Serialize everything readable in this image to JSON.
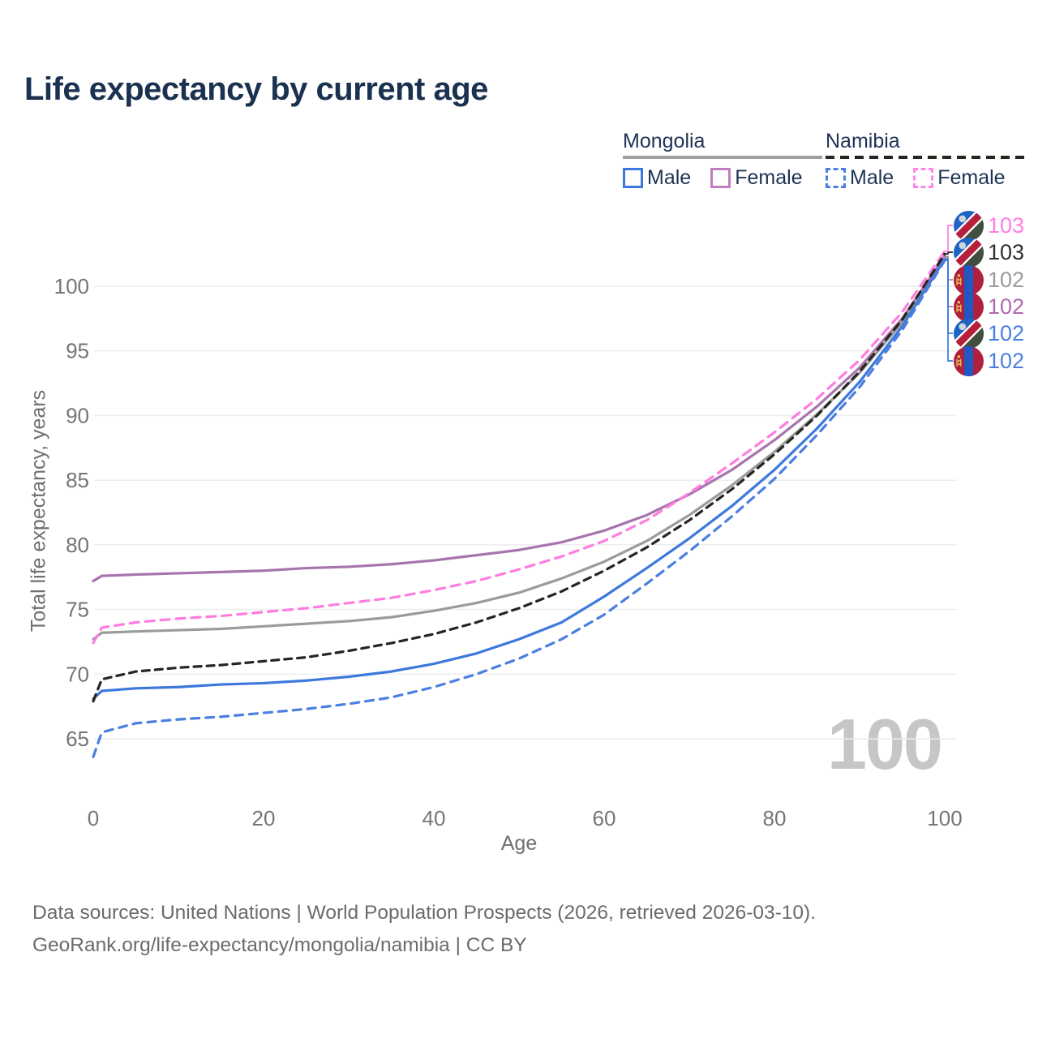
{
  "title": "Life expectancy by current age",
  "watermark": "100",
  "legend": {
    "groups": [
      {
        "name": "Mongolia",
        "line_style": "solid",
        "line_color": "#9f9f9f",
        "items": [
          {
            "label": "Male",
            "color": "#3d78dd",
            "swatch_style": "solid"
          },
          {
            "label": "Female",
            "color": "#bd80bd",
            "swatch_style": "solid"
          }
        ]
      },
      {
        "name": "Namibia",
        "line_style": "dashed",
        "line_color": "#26261f",
        "items": [
          {
            "label": "Male",
            "color": "#4a7fe0",
            "swatch_style": "dashed"
          },
          {
            "label": "Female",
            "color": "#ff85e7",
            "swatch_style": "dashed"
          }
        ]
      }
    ]
  },
  "end_labels": [
    {
      "country": "Namibia",
      "value": "103",
      "color": "#ff7ce6"
    },
    {
      "country": "Namibia",
      "value": "103",
      "color": "#2f2f2f"
    },
    {
      "country": "Mongolia",
      "value": "102",
      "color": "#9b9b9b"
    },
    {
      "country": "Mongolia",
      "value": "102",
      "color": "#b069b0"
    },
    {
      "country": "Namibia",
      "value": "102",
      "color": "#4a7fe0"
    },
    {
      "country": "Mongolia",
      "value": "102",
      "color": "#4a7fe0"
    }
  ],
  "footer": {
    "line1": "Data sources: United Nations | World Population Prospects (2026, retrieved 2026-03-10).",
    "line2": "GeoRank.org/life-expectancy/mongolia/namibia | CC BY"
  },
  "chart_data": {
    "type": "line",
    "title": "Life expectancy by current age",
    "xlabel": "Age",
    "ylabel": "Total life expectancy, years",
    "x_ticks": [
      0,
      20,
      40,
      60,
      80,
      100
    ],
    "y_ticks": [
      65,
      70,
      75,
      80,
      85,
      90,
      95,
      100
    ],
    "xlim": [
      0,
      100
    ],
    "ylim": [
      63,
      104
    ],
    "grid": true,
    "legend_position": "top-right",
    "grid_color": "#ececec",
    "tick_color": "#757575",
    "x": [
      0,
      1,
      5,
      10,
      15,
      20,
      25,
      30,
      35,
      40,
      45,
      50,
      55,
      60,
      65,
      70,
      75,
      80,
      85,
      90,
      95,
      100
    ],
    "series": [
      {
        "name": "Namibia Female",
        "country": "Namibia",
        "sex": "Female",
        "style": "dashed",
        "color": "#ff7ce0",
        "dash": "11 8",
        "width": 3.2,
        "end_value": 103,
        "y": [
          72.4,
          73.6,
          74.0,
          74.3,
          74.5,
          74.8,
          75.1,
          75.5,
          75.9,
          76.5,
          77.2,
          78.1,
          79.1,
          80.3,
          81.9,
          84.0,
          86.3,
          88.7,
          91.3,
          94.3,
          98.0,
          102.7
        ]
      },
      {
        "name": "Namibia Both sexes",
        "country": "Namibia",
        "sex": "Both",
        "style": "dashed",
        "color": "#26261f",
        "dash": "9 7",
        "width": 3.2,
        "end_value": 103,
        "y": [
          67.9,
          69.6,
          70.2,
          70.5,
          70.7,
          71.0,
          71.3,
          71.8,
          72.4,
          73.1,
          74.0,
          75.1,
          76.4,
          78.0,
          79.8,
          81.9,
          84.3,
          87.0,
          90.0,
          93.4,
          97.4,
          102.5
        ]
      },
      {
        "name": "Mongolia Both sexes",
        "country": "Mongolia",
        "sex": "Both",
        "style": "solid",
        "color": "#9b9b9b",
        "dash": null,
        "width": 3.2,
        "end_value": 102,
        "y": [
          72.7,
          73.2,
          73.3,
          73.4,
          73.5,
          73.7,
          73.9,
          74.1,
          74.4,
          74.9,
          75.5,
          76.3,
          77.4,
          78.7,
          80.3,
          82.3,
          84.6,
          87.2,
          90.1,
          93.3,
          97.2,
          102.2
        ]
      },
      {
        "name": "Mongolia Female",
        "country": "Mongolia",
        "sex": "Female",
        "style": "solid",
        "color": "#a874ad",
        "dash": null,
        "width": 3.2,
        "end_value": 102,
        "y": [
          77.2,
          77.6,
          77.7,
          77.8,
          77.9,
          78.0,
          78.2,
          78.3,
          78.5,
          78.8,
          79.2,
          79.6,
          80.2,
          81.1,
          82.3,
          83.9,
          85.8,
          88.1,
          90.7,
          93.7,
          97.5,
          102.3
        ]
      },
      {
        "name": "Namibia Male",
        "country": "Namibia",
        "sex": "Male",
        "style": "dashed",
        "color": "#4a7fe0",
        "dash": "10 8",
        "width": 3.2,
        "end_value": 102,
        "y": [
          63.6,
          65.5,
          66.2,
          66.5,
          66.7,
          67.0,
          67.3,
          67.7,
          68.2,
          69.0,
          70.0,
          71.2,
          72.7,
          74.6,
          77.0,
          79.5,
          82.2,
          85.1,
          88.5,
          92.2,
          96.6,
          102.0
        ]
      },
      {
        "name": "Mongolia Male",
        "country": "Mongolia",
        "sex": "Male",
        "style": "solid",
        "color": "#3d78dd",
        "dash": null,
        "width": 3.2,
        "end_value": 102,
        "y": [
          68.1,
          68.7,
          68.9,
          69.0,
          69.2,
          69.3,
          69.5,
          69.8,
          70.2,
          70.8,
          71.6,
          72.7,
          74.0,
          76.0,
          78.2,
          80.5,
          83.0,
          85.8,
          89.0,
          92.6,
          96.9,
          102.1
        ]
      }
    ]
  }
}
